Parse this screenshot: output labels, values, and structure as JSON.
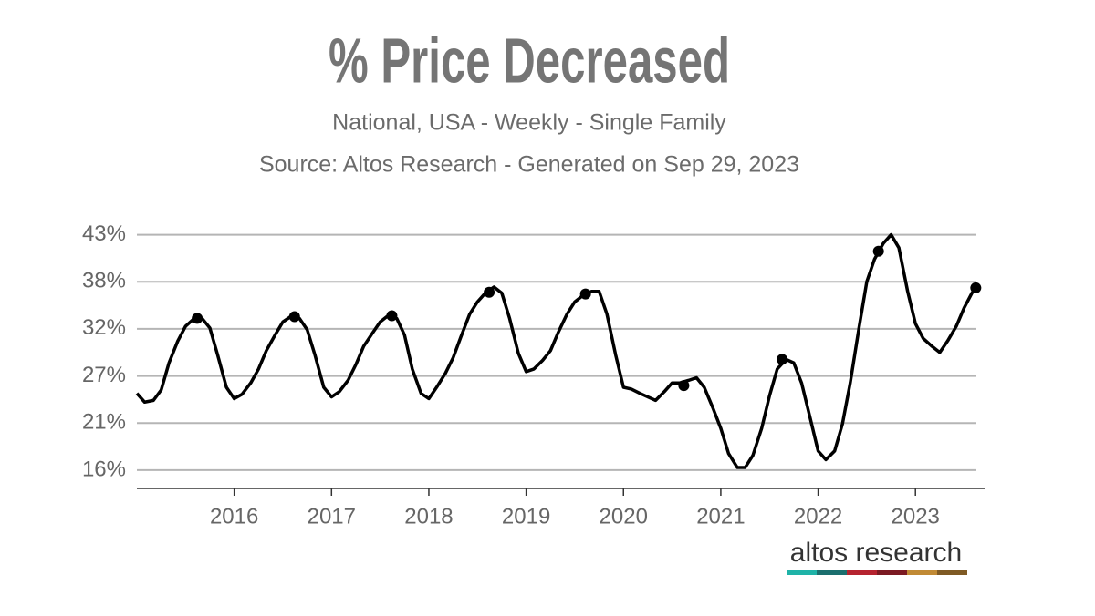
{
  "chart_data": {
    "type": "line",
    "title": "% Price Decreased",
    "subtitle": "National, USA - Weekly - Single Family",
    "source": "Source: Altos Research - Generated on Sep 29, 2023",
    "logo": "altos research",
    "color": "#000000",
    "grid": true,
    "xlim": [
      2015.0,
      2023.72
    ],
    "xticks": [
      2016,
      2017,
      2018,
      2019,
      2020,
      2021,
      2022,
      2023
    ],
    "ylim": [
      13.9,
      44.0
    ],
    "yticks": [
      {
        "value": 16,
        "label": "16%"
      },
      {
        "value": 21.4,
        "label": "21%"
      },
      {
        "value": 26.8,
        "label": "27%"
      },
      {
        "value": 32.2,
        "label": "32%"
      },
      {
        "value": 37.6,
        "label": "38%"
      },
      {
        "value": 43,
        "label": "43%"
      }
    ],
    "x": [
      2015.0,
      2015.08,
      2015.17,
      2015.25,
      2015.33,
      2015.42,
      2015.5,
      2015.58,
      2015.67,
      2015.75,
      2015.83,
      2015.92,
      2016.0,
      2016.08,
      2016.17,
      2016.25,
      2016.33,
      2016.42,
      2016.5,
      2016.58,
      2016.67,
      2016.75,
      2016.83,
      2016.92,
      2017.0,
      2017.08,
      2017.17,
      2017.25,
      2017.33,
      2017.42,
      2017.5,
      2017.58,
      2017.67,
      2017.75,
      2017.83,
      2017.92,
      2018.0,
      2018.08,
      2018.17,
      2018.25,
      2018.33,
      2018.42,
      2018.5,
      2018.58,
      2018.67,
      2018.75,
      2018.83,
      2018.92,
      2019.0,
      2019.08,
      2019.17,
      2019.25,
      2019.33,
      2019.42,
      2019.5,
      2019.58,
      2019.67,
      2019.75,
      2019.83,
      2019.92,
      2020.0,
      2020.08,
      2020.17,
      2020.25,
      2020.33,
      2020.42,
      2020.5,
      2020.58,
      2020.67,
      2020.75,
      2020.83,
      2020.92,
      2021.0,
      2021.08,
      2021.17,
      2021.25,
      2021.33,
      2021.42,
      2021.5,
      2021.58,
      2021.67,
      2021.75,
      2021.83,
      2021.92,
      2022.0,
      2022.08,
      2022.17,
      2022.25,
      2022.33,
      2022.42,
      2022.5,
      2022.58,
      2022.67,
      2022.75,
      2022.83,
      2022.92,
      2023.0,
      2023.08,
      2023.17,
      2023.25,
      2023.33,
      2023.42,
      2023.5,
      2023.58,
      2023.62
    ],
    "values": [
      24.8,
      23.8,
      24.0,
      25.2,
      28.3,
      30.8,
      32.5,
      33.3,
      33.4,
      32.3,
      29.2,
      25.5,
      24.2,
      24.7,
      26.0,
      27.6,
      29.7,
      31.5,
      33.0,
      33.6,
      33.4,
      32.1,
      29.2,
      25.5,
      24.4,
      25.0,
      26.3,
      28.1,
      30.2,
      31.7,
      33.0,
      33.7,
      33.4,
      31.5,
      27.6,
      24.8,
      24.2,
      25.5,
      27.1,
      28.9,
      31.3,
      33.9,
      35.3,
      36.3,
      37.0,
      36.3,
      33.4,
      29.4,
      27.3,
      27.6,
      28.6,
      29.7,
      31.8,
      33.9,
      35.3,
      36.0,
      36.5,
      36.5,
      33.9,
      29.2,
      25.5,
      25.3,
      24.8,
      24.4,
      24.0,
      25.0,
      26.0,
      26.0,
      26.3,
      26.6,
      25.5,
      23.1,
      20.8,
      17.9,
      16.3,
      16.3,
      17.7,
      20.8,
      24.5,
      27.6,
      28.7,
      28.3,
      26.0,
      21.9,
      18.2,
      17.2,
      18.2,
      21.3,
      26.0,
      32.3,
      37.6,
      40.2,
      42.0,
      43.0,
      41.5,
      36.5,
      32.8,
      31.1,
      30.2,
      29.5,
      30.8,
      32.5,
      34.6,
      36.3,
      36.9
    ],
    "markers": {
      "x": [
        2015.62,
        2016.62,
        2017.62,
        2018.62,
        2019.61,
        2020.62,
        2021.63,
        2022.62,
        2023.62
      ],
      "values": [
        33.4,
        33.6,
        33.7,
        36.4,
        36.2,
        25.7,
        28.7,
        41.1,
        36.9
      ]
    }
  }
}
